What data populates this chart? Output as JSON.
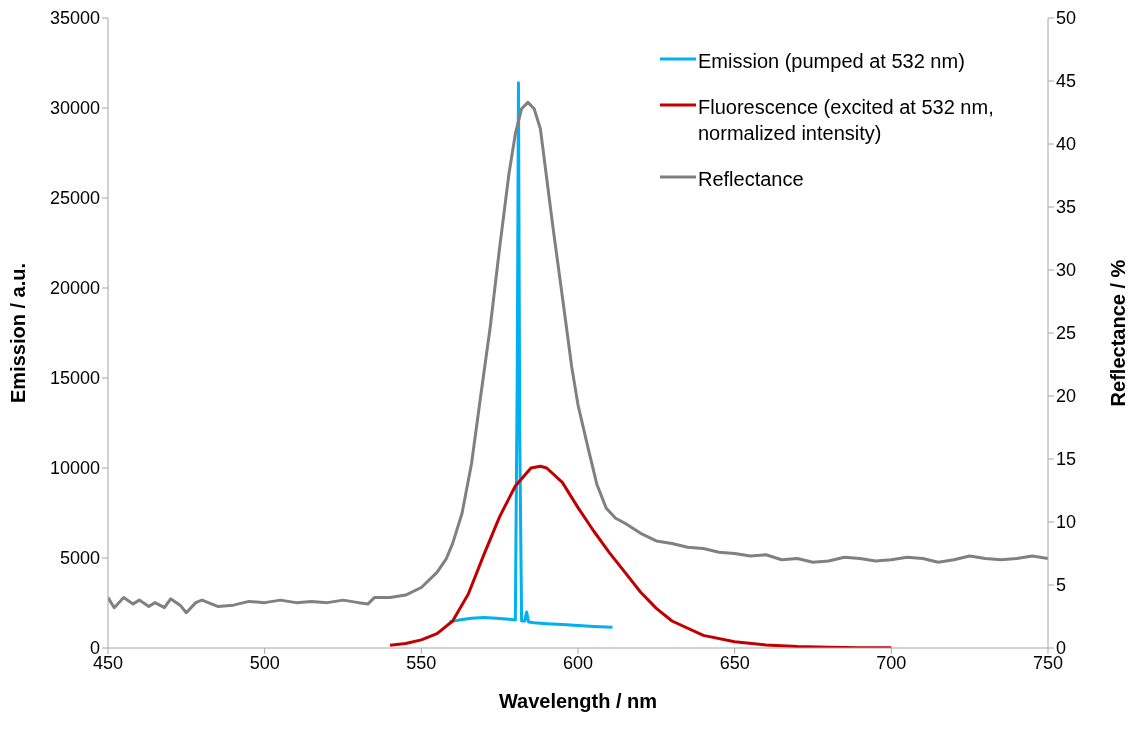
{
  "chart_data": {
    "type": "line",
    "xlabel": "Wavelength / nm",
    "ylabel": "Emission / a.u.",
    "y2label": "Reflectance / %",
    "xlim": [
      450,
      750
    ],
    "xticks": [
      450,
      500,
      550,
      600,
      650,
      700,
      750
    ],
    "ylim": [
      0,
      35000
    ],
    "yticks": [
      0,
      5000,
      10000,
      15000,
      20000,
      25000,
      30000,
      35000
    ],
    "y2lim": [
      0,
      50
    ],
    "y2ticks": [
      0,
      5,
      10,
      15,
      20,
      25,
      30,
      35,
      40,
      45,
      50
    ],
    "legend": "top right",
    "marker": "none",
    "line_style": "solid",
    "series": [
      {
        "name": "Emission (pumped at 532 nm)",
        "color": "#00b0f0",
        "x": [
          559,
          562,
          566,
          570,
          574,
          578,
          580,
          580.6,
          581,
          581.4,
          582,
          583,
          583.6,
          584.2,
          586,
          590,
          595,
          600,
          605,
          611
        ],
        "values": [
          1450,
          1550,
          1650,
          1700,
          1650,
          1600,
          1550,
          15000,
          31400,
          12000,
          1500,
          1500,
          2000,
          1450,
          1400,
          1350,
          1300,
          1250,
          1200,
          1150
        ]
      },
      {
        "name": "Fluorescence (excited at 532 nm, normalized intensity)",
        "color": "#c00000",
        "x": [
          540,
          545,
          550,
          555,
          560,
          565,
          570,
          575,
          580,
          585,
          588,
          590,
          595,
          600,
          605,
          610,
          615,
          620,
          625,
          630,
          640,
          650,
          660,
          670,
          680,
          690,
          700
        ],
        "values": [
          150,
          250,
          450,
          800,
          1500,
          3000,
          5200,
          7300,
          9000,
          10000,
          10100,
          10000,
          9200,
          7800,
          6500,
          5300,
          4200,
          3100,
          2200,
          1500,
          700,
          350,
          170,
          80,
          40,
          20,
          10
        ]
      },
      {
        "name": "Reflectance",
        "axis": "y2",
        "color": "#808080",
        "x": [
          450,
          452,
          455,
          458,
          460,
          463,
          465,
          468,
          470,
          473,
          475,
          478,
          480,
          485,
          490,
          495,
          500,
          505,
          510,
          515,
          520,
          525,
          530,
          533,
          535,
          540,
          545,
          550,
          555,
          558,
          560,
          563,
          566,
          569,
          572,
          575,
          578,
          580,
          582,
          584,
          586,
          588,
          590,
          592,
          595,
          598,
          600,
          603,
          606,
          609,
          612,
          615,
          620,
          625,
          630,
          635,
          640,
          645,
          650,
          655,
          660,
          665,
          670,
          675,
          680,
          685,
          690,
          695,
          700,
          705,
          710,
          715,
          720,
          725,
          730,
          735,
          740,
          745,
          750
        ],
        "values": [
          4.0,
          3.2,
          4.0,
          3.5,
          3.8,
          3.3,
          3.6,
          3.2,
          3.9,
          3.4,
          2.8,
          3.6,
          3.8,
          3.3,
          3.4,
          3.7,
          3.6,
          3.8,
          3.6,
          3.7,
          3.6,
          3.8,
          3.6,
          3.5,
          4.0,
          4.0,
          4.2,
          4.8,
          6.0,
          7.1,
          8.3,
          10.7,
          14.6,
          20.1,
          25.5,
          31.8,
          37.7,
          40.8,
          42.8,
          43.3,
          42.8,
          41.2,
          37.3,
          33.4,
          27.9,
          22.3,
          19.3,
          16.1,
          13.0,
          11.1,
          10.3,
          9.9,
          9.1,
          8.5,
          8.3,
          8.0,
          7.9,
          7.6,
          7.5,
          7.3,
          7.4,
          7.0,
          7.1,
          6.8,
          6.9,
          7.2,
          7.1,
          6.9,
          7.0,
          7.2,
          7.1,
          6.8,
          7.0,
          7.3,
          7.1,
          7.0,
          7.1,
          7.3,
          7.1
        ]
      }
    ]
  }
}
